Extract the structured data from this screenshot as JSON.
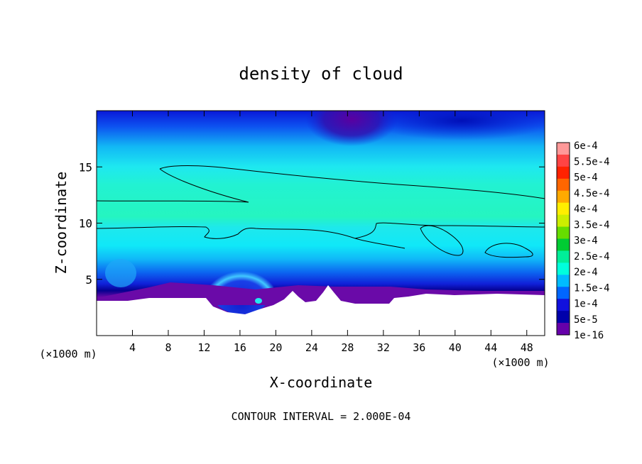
{
  "chart_data": {
    "type": "heatmap",
    "title": "density of cloud",
    "xlabel": "X-coordinate",
    "ylabel": "Z-coordinate",
    "x_unit": "(×1000 m)",
    "y_unit": "(×1000 m)",
    "xlim": [
      0,
      50
    ],
    "ylim": [
      0,
      20
    ],
    "x_ticks": [
      4,
      8,
      12,
      16,
      20,
      24,
      28,
      32,
      36,
      40,
      44,
      48
    ],
    "y_ticks": [
      5,
      10,
      15
    ],
    "footer": "CONTOUR INTERVAL = 2.000E-04",
    "colorbar": {
      "labels": [
        "6e-4",
        "5.5e-4",
        "5e-4",
        "4.5e-4",
        "4e-4",
        "3.5e-4",
        "3e-4",
        "2.5e-4",
        "2e-4",
        "1.5e-4",
        "1e-4",
        "5e-5",
        "1e-16"
      ],
      "colors": [
        "#ff9999",
        "#ff4444",
        "#ff2200",
        "#ff6600",
        "#ffaa00",
        "#ffee00",
        "#ccee00",
        "#66dd00",
        "#00cc33",
        "#00ee99",
        "#00ffdd",
        "#00bbff",
        "#0066ff",
        "#1111dd",
        "#0000aa",
        "#6600aa"
      ]
    }
  }
}
